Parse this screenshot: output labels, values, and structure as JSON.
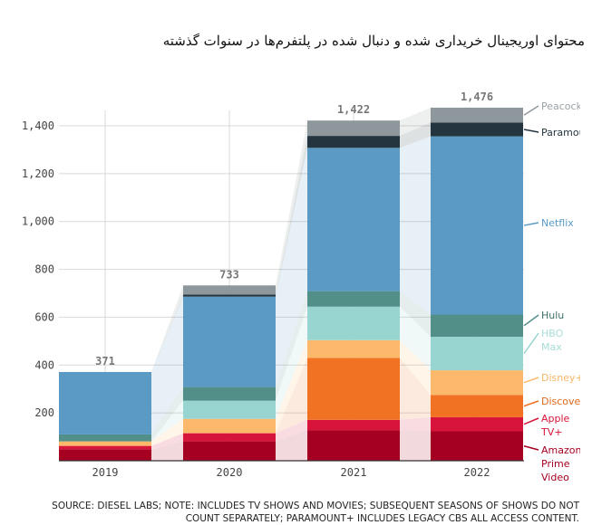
{
  "title": "محتوای اوریجینال خریداری شده و دنبال شده در پلتفرم‌ها در سنوات گذشته",
  "source_line1": "SOURCE: DIESEL LABS; NOTE: INCLUDES TV SHOWS AND MOVIES; SUBSEQUENT SEASONS OF SHOWS DO NOT",
  "source_line2": "COUNT SEPARATELY; PARAMOUNT+ INCLUDES LEGACY CBS ALL ACCESS CONTENT.",
  "chart_data": {
    "type": "bar",
    "stacked": true,
    "categories": [
      "2019",
      "2020",
      "2021",
      "2022"
    ],
    "totals": [
      "371",
      "733",
      "1,422",
      "1,476"
    ],
    "ylim": [
      0,
      1480
    ],
    "yticks": [
      200,
      400,
      600,
      800,
      1000,
      1200,
      1400
    ],
    "ytick_labels": [
      "200",
      "400",
      "600",
      "800",
      "1,000",
      "1,200",
      "1,400"
    ],
    "grid": true,
    "legend": "right (direct labels)",
    "series": [
      {
        "name": "Amazon Prime Video",
        "label_lines": [
          "Amazon",
          "Prime",
          "Video"
        ],
        "color": "#a50021",
        "values": [
          47,
          81,
          127,
          123
        ]
      },
      {
        "name": "Apple TV+",
        "label_lines": [
          "Apple",
          "TV+"
        ],
        "color": "#d7153a",
        "values": [
          15,
          34,
          44,
          59
        ]
      },
      {
        "name": "Discovery",
        "label_lines": [
          "Discovery"
        ],
        "color": "#f07222",
        "values": [
          0,
          0,
          259,
          93
        ]
      },
      {
        "name": "Disney+",
        "label_lines": [
          "Disney+"
        ],
        "color": "#fdb96b",
        "values": [
          19,
          60,
          74,
          103
        ]
      },
      {
        "name": "HBO Max",
        "label_lines": [
          "HBO",
          "Max"
        ],
        "color": "#98d5d1",
        "values": [
          0,
          76,
          140,
          140
        ]
      },
      {
        "name": "Hulu",
        "label_lines": [
          "Hulu"
        ],
        "color": "#528f88",
        "values": [
          29,
          57,
          65,
          93
        ]
      },
      {
        "name": "Netflix",
        "label_lines": [
          "Netflix"
        ],
        "color": "#5a9ac4",
        "values": [
          261,
          378,
          599,
          745
        ]
      },
      {
        "name": "Paramount+",
        "label_lines": [
          "Paramount"
        ],
        "color": "#24353f",
        "values": [
          0,
          9,
          50,
          58
        ]
      },
      {
        "name": "Peacock",
        "label_lines": [
          "Peacock"
        ],
        "color": "#8e979c",
        "values": [
          0,
          38,
          64,
          62
        ]
      }
    ]
  }
}
